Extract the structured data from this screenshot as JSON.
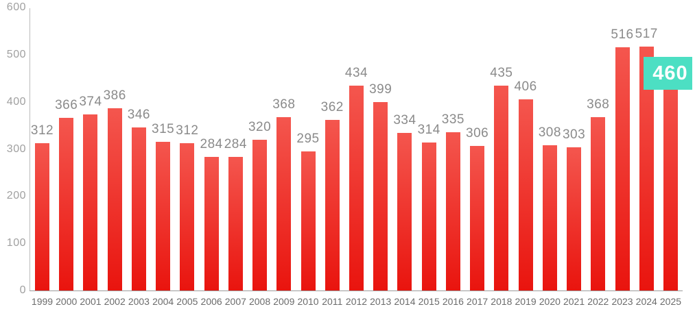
{
  "chart_data": {
    "type": "bar",
    "title": "",
    "xlabel": "",
    "ylabel": "",
    "categories": [
      "1999",
      "2000",
      "2001",
      "2002",
      "2003",
      "2004",
      "2005",
      "2006",
      "2007",
      "2008",
      "2009",
      "2010",
      "2011",
      "2012",
      "2013",
      "2014",
      "2015",
      "2016",
      "2017",
      "2018",
      "2019",
      "2020",
      "2021",
      "2022",
      "2023",
      "2024",
      "2025"
    ],
    "values": [
      312,
      366,
      374,
      386,
      346,
      315,
      312,
      284,
      284,
      320,
      368,
      295,
      362,
      434,
      399,
      334,
      314,
      335,
      306,
      435,
      406,
      308,
      303,
      368,
      516,
      517,
      460
    ],
    "ylim": [
      0,
      600
    ],
    "yticks": [
      0,
      100,
      200,
      300,
      400,
      500,
      600
    ],
    "grid": false,
    "legend": false,
    "value_labels_shown": true,
    "highlight": {
      "category": "2025",
      "value": 460,
      "badge_color": "#4CDFC3",
      "badge_text_color": "#FFFFFF"
    }
  },
  "colors": {
    "background": "#FFFFFF",
    "bar_gradient_top": "#F4564E",
    "bar_gradient_bottom": "#E9140E",
    "y_axis_line": "#BBBBBB",
    "x_axis_line": "#9A9A9A",
    "y_tick_label": "#A0A0A0",
    "x_tick_label": "#6B6B6B",
    "value_label": "#8A8A8A"
  }
}
